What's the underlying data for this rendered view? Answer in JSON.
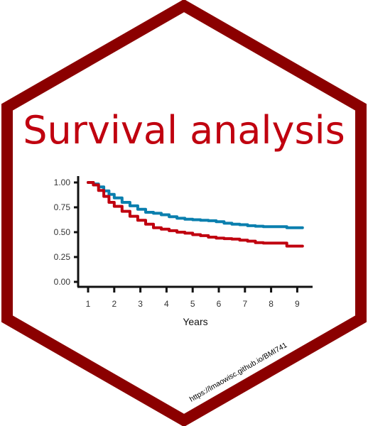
{
  "sticker": {
    "title": "Survival analysis",
    "url": "https://lmaowisc.github.io/BMI741",
    "border_color": "#8B0000",
    "title_color": "#C0000F",
    "background": "#FFFFFF"
  },
  "chart_data": {
    "type": "line",
    "title": "",
    "xlabel": "Years",
    "ylabel": "",
    "xlim": [
      0.9,
      9.5
    ],
    "ylim": [
      0,
      1
    ],
    "x_ticks": [
      "1",
      "2",
      "3",
      "4",
      "5",
      "6",
      "7",
      "8",
      "9"
    ],
    "y_ticks": [
      "0.00",
      "0.25",
      "0.50",
      "0.75",
      "1.00"
    ],
    "grid": false,
    "series": [
      {
        "color": "#0A7FAE",
        "x": [
          1.0,
          1.2,
          1.4,
          1.6,
          1.8,
          2.0,
          2.3,
          2.6,
          2.9,
          3.2,
          3.5,
          3.8,
          4.1,
          4.4,
          4.7,
          5.0,
          5.3,
          5.6,
          5.9,
          6.2,
          6.5,
          6.8,
          7.1,
          7.4,
          7.7,
          8.0,
          8.3,
          8.6,
          9.0,
          9.2
        ],
        "y": [
          1.0,
          0.985,
          0.955,
          0.915,
          0.88,
          0.845,
          0.8,
          0.765,
          0.73,
          0.7,
          0.69,
          0.675,
          0.655,
          0.64,
          0.63,
          0.625,
          0.62,
          0.615,
          0.605,
          0.59,
          0.58,
          0.575,
          0.565,
          0.56,
          0.555,
          0.555,
          0.555,
          0.545,
          0.545,
          0.545
        ]
      },
      {
        "color": "#C0000F",
        "x": [
          1.0,
          1.2,
          1.4,
          1.6,
          1.8,
          2.0,
          2.3,
          2.6,
          2.9,
          3.2,
          3.5,
          3.8,
          4.1,
          4.4,
          4.7,
          5.0,
          5.3,
          5.6,
          5.9,
          6.2,
          6.5,
          6.8,
          7.1,
          7.4,
          7.7,
          8.0,
          8.3,
          8.6,
          9.0,
          9.2
        ],
        "y": [
          1.0,
          0.975,
          0.92,
          0.86,
          0.8,
          0.76,
          0.71,
          0.66,
          0.62,
          0.58,
          0.545,
          0.53,
          0.515,
          0.5,
          0.49,
          0.475,
          0.465,
          0.45,
          0.44,
          0.435,
          0.43,
          0.42,
          0.41,
          0.395,
          0.39,
          0.39,
          0.39,
          0.36,
          0.36,
          0.36
        ]
      }
    ]
  }
}
